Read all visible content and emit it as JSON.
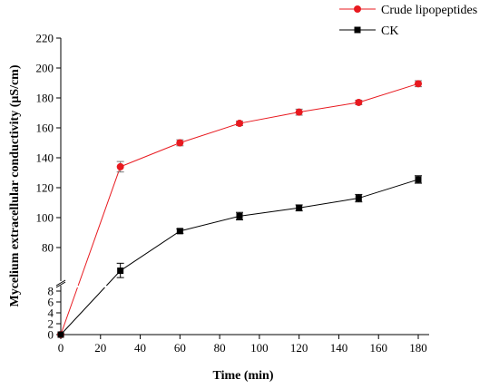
{
  "chart_data": {
    "type": "line",
    "xlabel": "Time (min)",
    "ylabel": "Mycelium extracellular conductivity (μS/cm)",
    "x": [
      0,
      30,
      60,
      90,
      120,
      150,
      180
    ],
    "xlim": [
      0,
      185
    ],
    "x_ticks": [
      "0",
      "20",
      "40",
      "60",
      "80",
      "100",
      "120",
      "140",
      "160",
      "180"
    ],
    "y_ticks_upper": [
      "80",
      "100",
      "120",
      "140",
      "160",
      "180",
      "200",
      "220"
    ],
    "y_ticks_lower": [
      "0",
      "2",
      "4",
      "6",
      "8"
    ],
    "y_axis_break": true,
    "ylim_lower": [
      0,
      8
    ],
    "ylim_upper": [
      60,
      220
    ],
    "legend_position": "top-right",
    "series": [
      {
        "name": "Crude lipopeptides",
        "color": "#e8191f",
        "marker": "circle",
        "values": [
          0,
          134,
          150,
          163,
          170.5,
          177,
          189.5
        ],
        "errors": [
          0,
          3.5,
          2,
          1.5,
          2,
          1.5,
          2
        ]
      },
      {
        "name": "CK",
        "color": "#000000",
        "marker": "square",
        "values": [
          0,
          64.5,
          91,
          101,
          106.5,
          113,
          125.5
        ],
        "errors": [
          0,
          5,
          1.5,
          2.5,
          2,
          2.5,
          2.5
        ]
      }
    ]
  }
}
